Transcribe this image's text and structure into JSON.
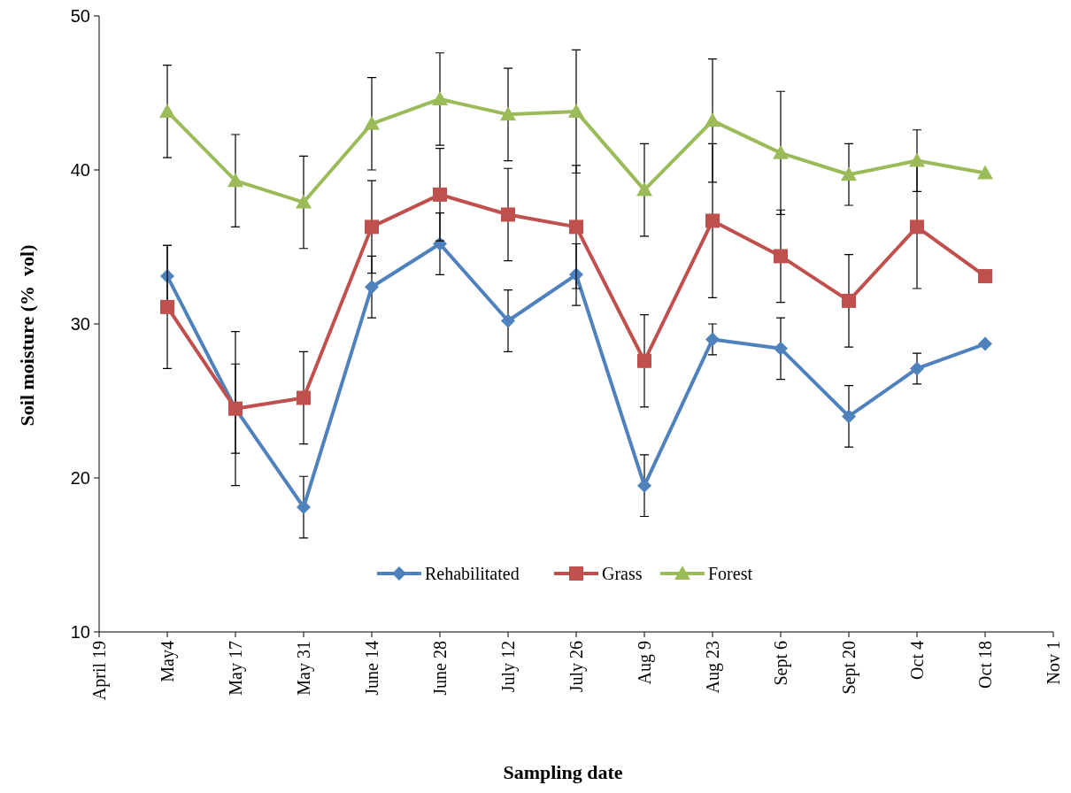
{
  "chart_data": {
    "type": "line",
    "xlabel": "Sampling date",
    "ylabel": "Soil moisture (%  vol)",
    "categories": [
      "April 19",
      "May4",
      "May 17",
      "May 31",
      "June 14",
      "June 28",
      "July 12",
      "July 26",
      "Aug 9",
      "Aug 23",
      "Sept 6",
      "Sept 20",
      "Oct 4",
      "Oct 18",
      "Nov 1"
    ],
    "ylim": [
      10,
      50
    ],
    "yticks": [
      10,
      20,
      30,
      40,
      50
    ],
    "grid": false,
    "legend": "bottom",
    "series": [
      {
        "name": "Rehabilitated",
        "color": "#4f81bd",
        "marker": "diamond",
        "values": [
          null,
          33.1,
          24.5,
          18.1,
          32.4,
          35.2,
          30.2,
          33.2,
          19.5,
          29.0,
          28.4,
          24.0,
          27.1,
          28.7,
          null
        ],
        "errors": [
          null,
          2,
          2.9,
          2,
          2,
          2,
          2,
          2,
          2,
          1,
          2,
          2,
          1,
          null,
          null
        ]
      },
      {
        "name": "Grass",
        "color": "#c0504d",
        "marker": "square",
        "values": [
          null,
          31.1,
          24.5,
          25.2,
          36.3,
          38.4,
          37.1,
          36.3,
          27.6,
          36.7,
          34.4,
          31.5,
          36.3,
          33.1,
          null
        ],
        "errors": [
          null,
          4,
          5,
          3,
          3,
          3,
          3,
          4,
          3,
          5,
          3,
          3,
          4,
          null,
          null
        ]
      },
      {
        "name": "Forest",
        "color": "#9bbb59",
        "marker": "triangle",
        "values": [
          null,
          43.8,
          39.3,
          37.9,
          43.0,
          44.6,
          43.6,
          43.8,
          38.7,
          43.2,
          41.1,
          39.7,
          40.6,
          39.8,
          null
        ],
        "errors": [
          null,
          3,
          3,
          3,
          3,
          3,
          3,
          4,
          3,
          4,
          4,
          2,
          2,
          null,
          null
        ]
      }
    ]
  }
}
